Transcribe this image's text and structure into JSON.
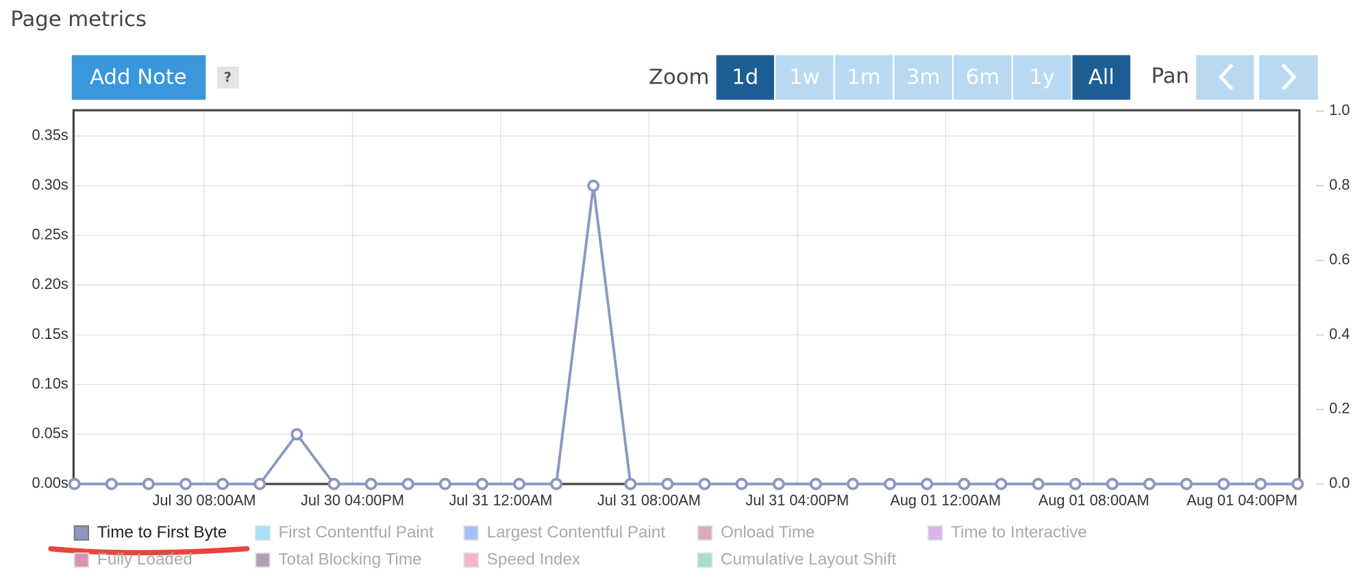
{
  "page": {
    "title": "Page metrics",
    "add_note": "Add Note",
    "help": "?",
    "zoom_label": "Zoom",
    "zoom_options": [
      "1d",
      "1w",
      "1m",
      "3m",
      "6m",
      "1y",
      "All"
    ],
    "zoom_active": [
      "1d",
      "All"
    ],
    "pan_label": "Pan"
  },
  "chart_data": {
    "type": "line",
    "x": [
      "Jul 30 01:00AM",
      "Jul 30 03:00AM",
      "Jul 30 05:00AM",
      "Jul 30 07:00AM",
      "Jul 30 09:00AM",
      "Jul 30 11:00AM",
      "Jul 30 01:00PM",
      "Jul 30 03:00PM",
      "Jul 30 05:00PM",
      "Jul 30 07:00PM",
      "Jul 30 09:00PM",
      "Jul 30 11:00PM",
      "Jul 31 01:00AM",
      "Jul 31 03:00AM",
      "Jul 31 05:00AM",
      "Jul 31 07:00AM",
      "Jul 31 09:00AM",
      "Jul 31 11:00AM",
      "Jul 31 01:00PM",
      "Jul 31 03:00PM",
      "Jul 31 05:00PM",
      "Jul 31 07:00PM",
      "Jul 31 09:00PM",
      "Jul 31 11:00PM",
      "Aug 01 01:00AM",
      "Aug 01 03:00AM",
      "Aug 01 05:00AM",
      "Aug 01 07:00AM",
      "Aug 01 09:00AM",
      "Aug 01 11:00AM",
      "Aug 01 01:00PM",
      "Aug 01 03:00PM",
      "Aug 01 05:00PM",
      "Aug 01 07:00PM"
    ],
    "xlim": [
      "Jul 30 01:00AM",
      "Aug 01 07:00PM"
    ],
    "xticks": [
      "Jul 30 08:00AM",
      "Jul 30 04:00PM",
      "Jul 31 12:00AM",
      "Jul 31 08:00AM",
      "Jul 31 04:00PM",
      "Aug 01 12:00AM",
      "Aug 01 08:00AM",
      "Aug 01 04:00PM"
    ],
    "ylim": [
      0,
      0.375
    ],
    "yticks": [
      {
        "value": 0,
        "label": "0.00s"
      },
      {
        "value": 0.05,
        "label": "0.05s"
      },
      {
        "value": 0.1,
        "label": "0.10s"
      },
      {
        "value": 0.15,
        "label": "0.15s"
      },
      {
        "value": 0.2,
        "label": "0.20s"
      },
      {
        "value": 0.25,
        "label": "0.25s"
      },
      {
        "value": 0.3,
        "label": "0.30s"
      },
      {
        "value": 0.35,
        "label": "0.35s"
      }
    ],
    "y2lim": [
      0,
      1
    ],
    "y2ticks": [
      {
        "value": 0,
        "label": "0.0"
      },
      {
        "value": 0.2,
        "label": "0.2"
      },
      {
        "value": 0.4,
        "label": "0.4"
      },
      {
        "value": 0.6,
        "label": "0.6"
      },
      {
        "value": 0.8,
        "label": "0.8"
      },
      {
        "value": 1,
        "label": "1.0"
      }
    ],
    "grid": true,
    "series": [
      {
        "name": "Time to First Byte",
        "color": "#8a97c2",
        "values": [
          0,
          0,
          0,
          0,
          0,
          0,
          0.05,
          0,
          0,
          0,
          0,
          0,
          0,
          0,
          0.3,
          0,
          0,
          0,
          0,
          0,
          0,
          0,
          0,
          0,
          0,
          0,
          0,
          0,
          0,
          0,
          0,
          0,
          0,
          0
        ]
      }
    ],
    "hidden_series": [
      {
        "name": "First Contentful Paint",
        "color": "#a3e2f8"
      },
      {
        "name": "Largest Contentful Paint",
        "color": "#a4c0f6"
      },
      {
        "name": "Onload Time",
        "color": "#d9abc3"
      },
      {
        "name": "Time to Interactive",
        "color": "#dcb2ea"
      },
      {
        "name": "Fully Loaded",
        "color": "#d993b2"
      },
      {
        "name": "Total Blocking Time",
        "color": "#b59cb9"
      },
      {
        "name": "Speed Index",
        "color": "#f5b2d0"
      },
      {
        "name": "Cumulative Layout Shift",
        "color": "#a2e0c8"
      }
    ]
  }
}
